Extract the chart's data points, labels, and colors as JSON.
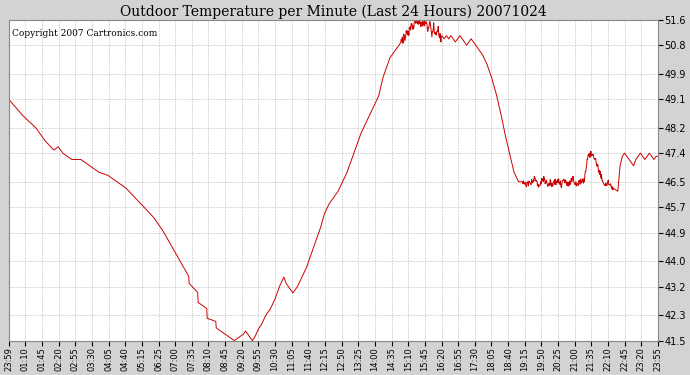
{
  "title": "Outdoor Temperature per Minute (Last 24 Hours) 20071024",
  "copyright_text": "Copyright 2007 Cartronics.com",
  "line_color": "#cc0000",
  "background_color": "#d3d3d3",
  "plot_bg_color": "#ffffff",
  "grid_color": "#bbbbbb",
  "yticks": [
    41.5,
    42.3,
    43.2,
    44.0,
    44.9,
    45.7,
    46.5,
    47.4,
    48.2,
    49.1,
    49.9,
    50.8,
    51.6
  ],
  "ylim": [
    41.5,
    51.6
  ],
  "xtick_labels": [
    "23:59",
    "01:10",
    "01:45",
    "02:20",
    "02:55",
    "03:30",
    "04:05",
    "04:40",
    "05:15",
    "06:25",
    "07:00",
    "07:35",
    "08:10",
    "08:45",
    "09:20",
    "09:55",
    "10:30",
    "11:05",
    "11:40",
    "12:15",
    "12:50",
    "13:25",
    "14:00",
    "14:35",
    "15:10",
    "15:45",
    "16:20",
    "16:55",
    "17:30",
    "18:05",
    "18:40",
    "19:15",
    "19:50",
    "20:25",
    "21:00",
    "21:35",
    "22:10",
    "22:45",
    "23:20",
    "23:55"
  ]
}
